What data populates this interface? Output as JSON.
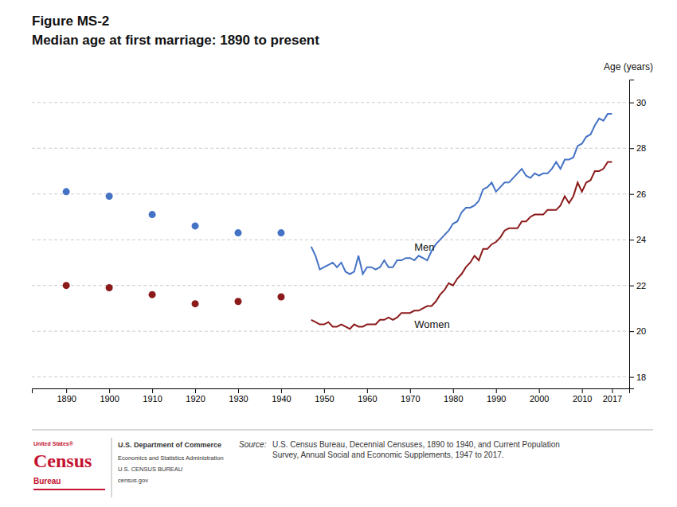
{
  "chart_data": {
    "type": "line",
    "title": "Figure MS-2",
    "subtitle": "Median age at first marriage: 1890 to present",
    "y_label": "Age (years)",
    "annotations": [
      "Source: ",
      "U.S. Census Bureau, Decennial Censuses, 1890 to 1940, and Current Population\nSurvey, Annual Social and Economic Supplements, 1947 to 2017.",
      "United States®",
      "Census",
      "Bureau",
      "U.S. Department of Commerce",
      "Economics and Statistics Administration",
      "U.S. CENSUS BUREAU",
      "census.gov"
    ],
    "series": [
      {
        "type": "scatter",
        "marker": "circle",
        "color": "#4472C4",
        "x": [
          1890,
          1900,
          1910,
          1920,
          1930,
          1940
        ],
        "values": [
          26.1,
          25.9,
          25.1,
          24.6,
          24.3,
          24.3
        ]
      },
      {
        "type": "scatter",
        "marker": "circle",
        "color": "#8B1A1A",
        "x": [
          1890,
          1900,
          1910,
          1920,
          1930,
          1940
        ],
        "values": [
          22.0,
          21.9,
          21.6,
          21.2,
          21.3,
          21.5
        ]
      },
      {
        "name": "Men",
        "type": "line",
        "line_style": "solid",
        "color": "#4472C4",
        "x": [
          1947,
          1948,
          1949,
          1950,
          1951,
          1952,
          1953,
          1954,
          1955,
          1956,
          1957,
          1958,
          1959,
          1960,
          1961,
          1962,
          1963,
          1964,
          1965,
          1966,
          1967,
          1968,
          1969,
          1970,
          1971,
          1972,
          1973,
          1974,
          1975,
          1976,
          1977,
          1978,
          1979,
          1980,
          1981,
          1982,
          1983,
          1984,
          1985,
          1986,
          1987,
          1988,
          1989,
          1990,
          1991,
          1992,
          1993,
          1994,
          1995,
          1996,
          1997,
          1998,
          1999,
          2000,
          2001,
          2002,
          2003,
          2004,
          2005,
          2006,
          2007,
          2008,
          2009,
          2010,
          2011,
          2012,
          2013,
          2014,
          2015,
          2016,
          2017
        ],
        "values": [
          23.7,
          23.3,
          22.7,
          22.8,
          22.9,
          23.0,
          22.8,
          23.0,
          22.6,
          22.5,
          22.6,
          23.3,
          22.5,
          22.8,
          22.8,
          22.7,
          22.8,
          23.1,
          22.8,
          22.8,
          23.1,
          23.1,
          23.2,
          23.2,
          23.1,
          23.3,
          23.2,
          23.1,
          23.5,
          23.8,
          24.0,
          24.2,
          24.4,
          24.7,
          24.8,
          25.2,
          25.4,
          25.4,
          25.5,
          25.7,
          26.2,
          26.3,
          26.5,
          26.1,
          26.3,
          26.5,
          26.5,
          26.7,
          26.9,
          27.1,
          26.8,
          26.7,
          26.9,
          26.8,
          26.9,
          26.9,
          27.1,
          27.4,
          27.1,
          27.5,
          27.5,
          27.6,
          28.1,
          28.2,
          28.5,
          28.6,
          29.0,
          29.3,
          29.2,
          29.5,
          29.5
        ]
      },
      {
        "name": "Women",
        "type": "line",
        "line_style": "solid",
        "color": "#8B1A1A",
        "x": [
          1947,
          1948,
          1949,
          1950,
          1951,
          1952,
          1953,
          1954,
          1955,
          1956,
          1957,
          1958,
          1959,
          1960,
          1961,
          1962,
          1963,
          1964,
          1965,
          1966,
          1967,
          1968,
          1969,
          1970,
          1971,
          1972,
          1973,
          1974,
          1975,
          1976,
          1977,
          1978,
          1979,
          1980,
          1981,
          1982,
          1983,
          1984,
          1985,
          1986,
          1987,
          1988,
          1989,
          1990,
          1991,
          1992,
          1993,
          1994,
          1995,
          1996,
          1997,
          1998,
          1999,
          2000,
          2001,
          2002,
          2003,
          2004,
          2005,
          2006,
          2007,
          2008,
          2009,
          2010,
          2011,
          2012,
          2013,
          2014,
          2015,
          2016,
          2017
        ],
        "values": [
          20.5,
          20.4,
          20.3,
          20.3,
          20.4,
          20.2,
          20.2,
          20.3,
          20.2,
          20.1,
          20.3,
          20.2,
          20.2,
          20.3,
          20.3,
          20.3,
          20.5,
          20.5,
          20.6,
          20.5,
          20.6,
          20.8,
          20.8,
          20.8,
          20.9,
          20.9,
          21.0,
          21.1,
          21.1,
          21.3,
          21.6,
          21.8,
          22.1,
          22.0,
          22.3,
          22.5,
          22.8,
          23.0,
          23.3,
          23.1,
          23.6,
          23.6,
          23.8,
          23.9,
          24.1,
          24.4,
          24.5,
          24.5,
          24.5,
          24.8,
          24.8,
          25.0,
          25.1,
          25.1,
          25.1,
          25.3,
          25.3,
          25.3,
          25.5,
          25.9,
          25.6,
          25.9,
          26.5,
          26.1,
          26.5,
          26.6,
          27.0,
          27.0,
          27.1,
          27.4,
          27.4
        ]
      }
    ],
    "xlim": [
      1882,
      2021
    ],
    "xticks": [
      1890,
      1900,
      1910,
      1920,
      1930,
      1940,
      1950,
      1960,
      1970,
      1980,
      1990,
      2000,
      2010,
      2017
    ],
    "ylim": [
      17.5,
      31.0
    ],
    "yticks": [
      18,
      20,
      22,
      24,
      26,
      28,
      30
    ],
    "grid": true
  }
}
